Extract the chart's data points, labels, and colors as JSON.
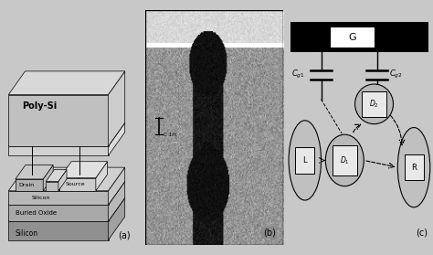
{
  "bg_color": "#c8c8c8",
  "panel_a_label": "(a)",
  "panel_b_label": "(b)",
  "panel_c_label": "(c)",
  "poly_si_label": "Poly-Si",
  "source_label": "Source",
  "silicon_label": "Silicon",
  "drain_label": "Drain",
  "buried_oxide_label": "Buried Oxide",
  "silicon_bottom_label": "Silicon",
  "G_label": "G",
  "L_label": "L",
  "R_label": "R"
}
